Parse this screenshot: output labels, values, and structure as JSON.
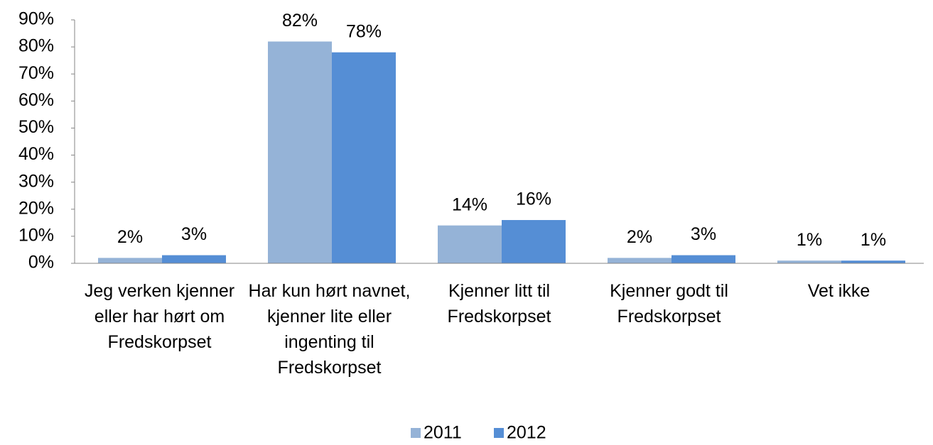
{
  "chart_data": {
    "type": "bar",
    "categories": [
      "Jeg verken kjenner eller har hørt om Fredskorpset",
      "Har kun hørt navnet, kjenner lite eller ingenting til Fredskorpset",
      "Kjenner litt til Fredskorpset",
      "Kjenner godt til Fredskorpset",
      "Vet ikke"
    ],
    "series": [
      {
        "name": "2011",
        "color": "#95b3d7",
        "values": [
          2,
          82,
          14,
          2,
          1
        ],
        "value_labels": [
          "2%",
          "82%",
          "14%",
          "2%",
          "1%"
        ]
      },
      {
        "name": "2012",
        "color": "#558ed5",
        "values": [
          3,
          78,
          16,
          3,
          1
        ],
        "value_labels": [
          "3%",
          "78%",
          "16%",
          "3%",
          "1%"
        ]
      }
    ],
    "ylim": [
      0,
      90
    ],
    "yticks": [
      {
        "value": 0,
        "label": "0%"
      },
      {
        "value": 10,
        "label": "10%"
      },
      {
        "value": 20,
        "label": "20%"
      },
      {
        "value": 30,
        "label": "30%"
      },
      {
        "value": 40,
        "label": "40%"
      },
      {
        "value": 50,
        "label": "50%"
      },
      {
        "value": 60,
        "label": "60%"
      },
      {
        "value": 70,
        "label": "70%"
      },
      {
        "value": 80,
        "label": "80%"
      },
      {
        "value": 90,
        "label": "90%"
      }
    ],
    "grid": false,
    "legend": "bottom"
  }
}
